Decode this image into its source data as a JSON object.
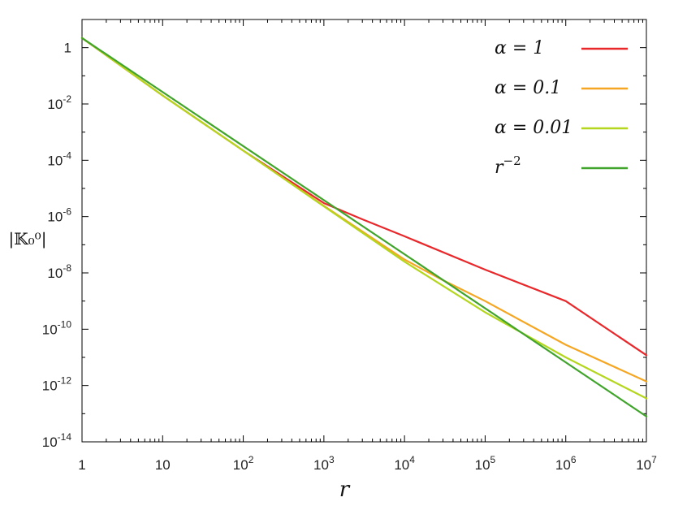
{
  "chart_data": {
    "type": "line",
    "x_scale": "log",
    "y_scale": "log",
    "xlim": [
      1,
      10000000
    ],
    "ylim": [
      1e-14,
      10
    ],
    "xlabel": "r",
    "ylabel": "|𝕂₀⁰|",
    "x_ticks": [
      {
        "value": 1,
        "base": "1",
        "exp": ""
      },
      {
        "value": 10,
        "base": "10",
        "exp": ""
      },
      {
        "value": 100,
        "base": "10",
        "exp": "2"
      },
      {
        "value": 1000,
        "base": "10",
        "exp": "3"
      },
      {
        "value": 10000,
        "base": "10",
        "exp": "4"
      },
      {
        "value": 100000,
        "base": "10",
        "exp": "5"
      },
      {
        "value": 1000000,
        "base": "10",
        "exp": "6"
      },
      {
        "value": 10000000,
        "base": "10",
        "exp": "7"
      }
    ],
    "y_ticks": [
      {
        "value": 1,
        "base": "1",
        "exp": ""
      },
      {
        "value": 0.01,
        "base": "10",
        "exp": "-2"
      },
      {
        "value": 0.0001,
        "base": "10",
        "exp": "-4"
      },
      {
        "value": 1e-06,
        "base": "10",
        "exp": "-6"
      },
      {
        "value": 1e-08,
        "base": "10",
        "exp": "-8"
      },
      {
        "value": 1e-10,
        "base": "10",
        "exp": "-10"
      },
      {
        "value": 1e-12,
        "base": "10",
        "exp": "-12"
      },
      {
        "value": 1e-14,
        "base": "10",
        "exp": "-14"
      }
    ],
    "legend_position": "top-right",
    "grid": false,
    "series": [
      {
        "name": "α = 1",
        "label_main": "α = 1",
        "label_sup": "",
        "color": "#e8282b",
        "x": [
          1,
          10,
          100,
          1000,
          3000,
          10000,
          100000,
          1000000,
          10000000
        ],
        "y": [
          2.2,
          0.02,
          0.00022,
          3e-06,
          8e-07,
          2e-07,
          1.3e-08,
          1e-09,
          1.2e-11
        ]
      },
      {
        "name": "α = 0.1",
        "label_main": "α = 0.1",
        "label_sup": "",
        "color": "#f5a623",
        "x": [
          1,
          10,
          100,
          1000,
          10000,
          30000,
          100000,
          1000000,
          10000000
        ],
        "y": [
          2.2,
          0.02,
          0.00022,
          2.4e-06,
          3e-08,
          5.5e-09,
          1e-09,
          2.8e-11,
          1.4e-12
        ]
      },
      {
        "name": "α = 0.01",
        "label_main": "α = 0.01",
        "label_sup": "",
        "color": "#b4d61e",
        "x": [
          1,
          10,
          100,
          1000,
          10000,
          100000,
          1000000,
          10000000
        ],
        "y": [
          2.2,
          0.02,
          0.00022,
          2.3e-06,
          2.5e-08,
          4e-10,
          1e-11,
          3.5e-13
        ]
      },
      {
        "name": "r⁻²",
        "label_main": "r",
        "label_sup": "−2",
        "color": "#41a42c",
        "x": [
          1,
          10000000
        ],
        "y": [
          2.2,
          8e-14
        ]
      }
    ]
  }
}
